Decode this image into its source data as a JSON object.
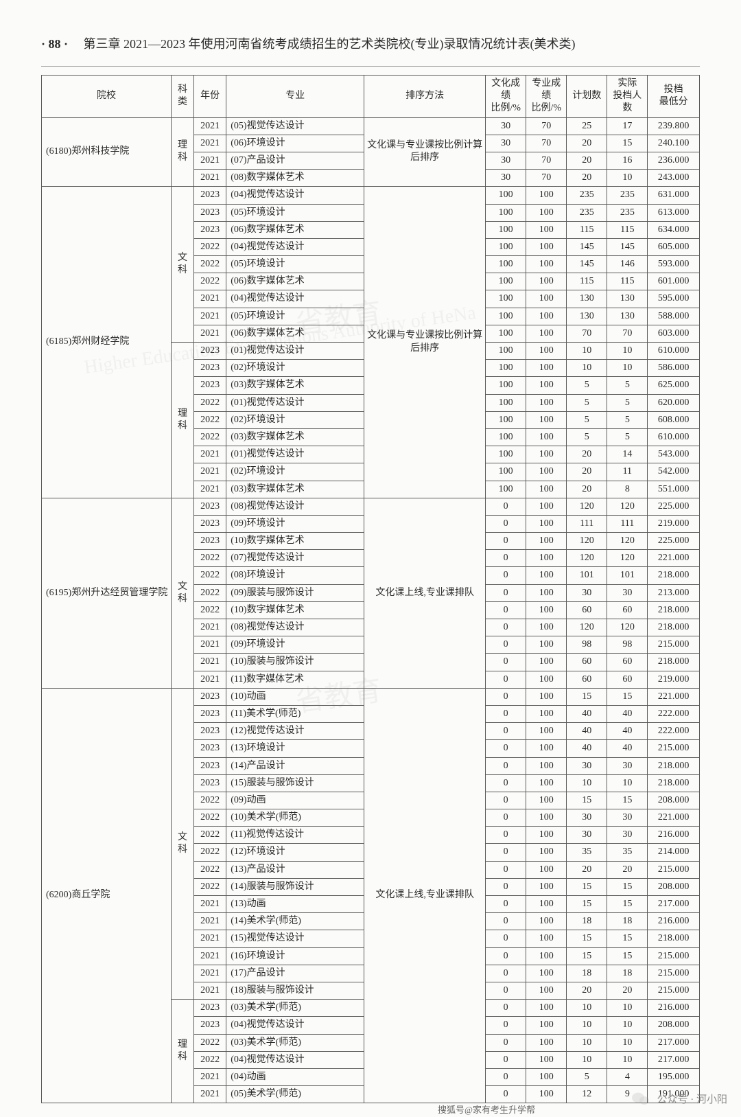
{
  "page": {
    "number": "· 88 ·",
    "chapter": "第三章  2021—2023 年使用河南省统考成绩招生的艺术类院校(专业)录取情况统计表(美术类)"
  },
  "headers": [
    "院校",
    "科类",
    "年份",
    "专业",
    "排序方法",
    "文化成绩比例/%",
    "专业成绩比例/%",
    "计划数",
    "实际投档人数",
    "投档最低分"
  ],
  "footer": {
    "wechat": "公众号 · 河小阳",
    "source": "搜狐号@家有考生升学帮"
  },
  "watermarks": [
    "Higher Education Examinations Authority of HeNa",
    "省教育",
    "省教育"
  ],
  "colwidths": [
    "160",
    "28",
    "40",
    "170",
    "150",
    "50",
    "50",
    "50",
    "50",
    "64"
  ],
  "schools": [
    {
      "name": "(6180)郑州科技学院",
      "tracks": [
        {
          "track": "理科",
          "method": "文化课与专业课按比例计算后排序",
          "rows": [
            {
              "year": "2021",
              "major": "(05)视觉传达设计",
              "wh": "30",
              "zy": "70",
              "plan": "25",
              "act": "17",
              "score": "239.800"
            },
            {
              "year": "2021",
              "major": "(06)环境设计",
              "wh": "30",
              "zy": "70",
              "plan": "20",
              "act": "15",
              "score": "240.100"
            },
            {
              "year": "2021",
              "major": "(07)产品设计",
              "wh": "30",
              "zy": "70",
              "plan": "20",
              "act": "16",
              "score": "236.000"
            },
            {
              "year": "2021",
              "major": "(08)数字媒体艺术",
              "wh": "30",
              "zy": "70",
              "plan": "20",
              "act": "10",
              "score": "243.000"
            }
          ]
        }
      ]
    },
    {
      "name": "(6185)郑州财经学院",
      "tracks": [
        {
          "track": "文科",
          "method": "文化课与专业课按比例计算后排序",
          "rows": [
            {
              "year": "2023",
              "major": "(04)视觉传达设计",
              "wh": "100",
              "zy": "100",
              "plan": "235",
              "act": "235",
              "score": "631.000"
            },
            {
              "year": "2023",
              "major": "(05)环境设计",
              "wh": "100",
              "zy": "100",
              "plan": "235",
              "act": "235",
              "score": "613.000"
            },
            {
              "year": "2023",
              "major": "(06)数字媒体艺术",
              "wh": "100",
              "zy": "100",
              "plan": "115",
              "act": "115",
              "score": "634.000"
            },
            {
              "year": "2022",
              "major": "(04)视觉传达设计",
              "wh": "100",
              "zy": "100",
              "plan": "145",
              "act": "145",
              "score": "605.000"
            },
            {
              "year": "2022",
              "major": "(05)环境设计",
              "wh": "100",
              "zy": "100",
              "plan": "145",
              "act": "146",
              "score": "593.000"
            },
            {
              "year": "2022",
              "major": "(06)数字媒体艺术",
              "wh": "100",
              "zy": "100",
              "plan": "115",
              "act": "115",
              "score": "601.000"
            },
            {
              "year": "2021",
              "major": "(04)视觉传达设计",
              "wh": "100",
              "zy": "100",
              "plan": "130",
              "act": "130",
              "score": "595.000"
            },
            {
              "year": "2021",
              "major": "(05)环境设计",
              "wh": "100",
              "zy": "100",
              "plan": "130",
              "act": "130",
              "score": "588.000"
            },
            {
              "year": "2021",
              "major": "(06)数字媒体艺术",
              "wh": "100",
              "zy": "100",
              "plan": "70",
              "act": "70",
              "score": "603.000"
            }
          ]
        },
        {
          "track": "理科",
          "method": null,
          "rows": [
            {
              "year": "2023",
              "major": "(01)视觉传达设计",
              "wh": "100",
              "zy": "100",
              "plan": "10",
              "act": "10",
              "score": "610.000"
            },
            {
              "year": "2023",
              "major": "(02)环境设计",
              "wh": "100",
              "zy": "100",
              "plan": "10",
              "act": "10",
              "score": "586.000"
            },
            {
              "year": "2023",
              "major": "(03)数字媒体艺术",
              "wh": "100",
              "zy": "100",
              "plan": "5",
              "act": "5",
              "score": "625.000"
            },
            {
              "year": "2022",
              "major": "(01)视觉传达设计",
              "wh": "100",
              "zy": "100",
              "plan": "5",
              "act": "5",
              "score": "620.000"
            },
            {
              "year": "2022",
              "major": "(02)环境设计",
              "wh": "100",
              "zy": "100",
              "plan": "5",
              "act": "5",
              "score": "608.000"
            },
            {
              "year": "2022",
              "major": "(03)数字媒体艺术",
              "wh": "100",
              "zy": "100",
              "plan": "5",
              "act": "5",
              "score": "610.000"
            },
            {
              "year": "2021",
              "major": "(01)视觉传达设计",
              "wh": "100",
              "zy": "100",
              "plan": "20",
              "act": "14",
              "score": "543.000"
            },
            {
              "year": "2021",
              "major": "(02)环境设计",
              "wh": "100",
              "zy": "100",
              "plan": "20",
              "act": "11",
              "score": "542.000"
            },
            {
              "year": "2021",
              "major": "(03)数字媒体艺术",
              "wh": "100",
              "zy": "100",
              "plan": "20",
              "act": "8",
              "score": "551.000"
            }
          ]
        }
      ]
    },
    {
      "name": "(6195)郑州升达经贸管理学院",
      "tracks": [
        {
          "track": "文科",
          "method": "文化课上线,专业课排队",
          "rows": [
            {
              "year": "2023",
              "major": "(08)视觉传达设计",
              "wh": "0",
              "zy": "100",
              "plan": "120",
              "act": "120",
              "score": "225.000"
            },
            {
              "year": "2023",
              "major": "(09)环境设计",
              "wh": "0",
              "zy": "100",
              "plan": "111",
              "act": "111",
              "score": "219.000"
            },
            {
              "year": "2023",
              "major": "(10)数字媒体艺术",
              "wh": "0",
              "zy": "100",
              "plan": "120",
              "act": "120",
              "score": "225.000"
            },
            {
              "year": "2022",
              "major": "(07)视觉传达设计",
              "wh": "0",
              "zy": "100",
              "plan": "120",
              "act": "120",
              "score": "221.000"
            },
            {
              "year": "2022",
              "major": "(08)环境设计",
              "wh": "0",
              "zy": "100",
              "plan": "101",
              "act": "101",
              "score": "218.000"
            },
            {
              "year": "2022",
              "major": "(09)服装与服饰设计",
              "wh": "0",
              "zy": "100",
              "plan": "30",
              "act": "30",
              "score": "213.000"
            },
            {
              "year": "2022",
              "major": "(10)数字媒体艺术",
              "wh": "0",
              "zy": "100",
              "plan": "60",
              "act": "60",
              "score": "218.000"
            },
            {
              "year": "2021",
              "major": "(08)视觉传达设计",
              "wh": "0",
              "zy": "100",
              "plan": "120",
              "act": "120",
              "score": "218.000"
            },
            {
              "year": "2021",
              "major": "(09)环境设计",
              "wh": "0",
              "zy": "100",
              "plan": "98",
              "act": "98",
              "score": "215.000"
            },
            {
              "year": "2021",
              "major": "(10)服装与服饰设计",
              "wh": "0",
              "zy": "100",
              "plan": "60",
              "act": "60",
              "score": "218.000"
            },
            {
              "year": "2021",
              "major": "(11)数字媒体艺术",
              "wh": "0",
              "zy": "100",
              "plan": "60",
              "act": "60",
              "score": "219.000"
            }
          ]
        }
      ]
    },
    {
      "name": "(6200)商丘学院",
      "tracks": [
        {
          "track": "文科",
          "method": "文化课上线,专业课排队",
          "rows": [
            {
              "year": "2023",
              "major": "(10)动画",
              "wh": "0",
              "zy": "100",
              "plan": "15",
              "act": "15",
              "score": "221.000"
            },
            {
              "year": "2023",
              "major": "(11)美术学(师范)",
              "wh": "0",
              "zy": "100",
              "plan": "40",
              "act": "40",
              "score": "222.000"
            },
            {
              "year": "2023",
              "major": "(12)视觉传达设计",
              "wh": "0",
              "zy": "100",
              "plan": "40",
              "act": "40",
              "score": "222.000"
            },
            {
              "year": "2023",
              "major": "(13)环境设计",
              "wh": "0",
              "zy": "100",
              "plan": "40",
              "act": "40",
              "score": "215.000"
            },
            {
              "year": "2023",
              "major": "(14)产品设计",
              "wh": "0",
              "zy": "100",
              "plan": "30",
              "act": "30",
              "score": "218.000"
            },
            {
              "year": "2023",
              "major": "(15)服装与服饰设计",
              "wh": "0",
              "zy": "100",
              "plan": "10",
              "act": "10",
              "score": "218.000"
            },
            {
              "year": "2022",
              "major": "(09)动画",
              "wh": "0",
              "zy": "100",
              "plan": "15",
              "act": "15",
              "score": "208.000"
            },
            {
              "year": "2022",
              "major": "(10)美术学(师范)",
              "wh": "0",
              "zy": "100",
              "plan": "30",
              "act": "30",
              "score": "221.000"
            },
            {
              "year": "2022",
              "major": "(11)视觉传达设计",
              "wh": "0",
              "zy": "100",
              "plan": "30",
              "act": "30",
              "score": "216.000"
            },
            {
              "year": "2022",
              "major": "(12)环境设计",
              "wh": "0",
              "zy": "100",
              "plan": "35",
              "act": "35",
              "score": "214.000"
            },
            {
              "year": "2022",
              "major": "(13)产品设计",
              "wh": "0",
              "zy": "100",
              "plan": "20",
              "act": "20",
              "score": "215.000"
            },
            {
              "year": "2022",
              "major": "(14)服装与服饰设计",
              "wh": "0",
              "zy": "100",
              "plan": "15",
              "act": "15",
              "score": "208.000"
            },
            {
              "year": "2021",
              "major": "(13)动画",
              "wh": "0",
              "zy": "100",
              "plan": "15",
              "act": "15",
              "score": "217.000"
            },
            {
              "year": "2021",
              "major": "(14)美术学(师范)",
              "wh": "0",
              "zy": "100",
              "plan": "18",
              "act": "18",
              "score": "216.000"
            },
            {
              "year": "2021",
              "major": "(15)视觉传达设计",
              "wh": "0",
              "zy": "100",
              "plan": "15",
              "act": "15",
              "score": "218.000"
            },
            {
              "year": "2021",
              "major": "(16)环境设计",
              "wh": "0",
              "zy": "100",
              "plan": "15",
              "act": "15",
              "score": "215.000"
            },
            {
              "year": "2021",
              "major": "(17)产品设计",
              "wh": "0",
              "zy": "100",
              "plan": "18",
              "act": "18",
              "score": "215.000"
            },
            {
              "year": "2021",
              "major": "(18)服装与服饰设计",
              "wh": "0",
              "zy": "100",
              "plan": "20",
              "act": "20",
              "score": "215.000"
            }
          ]
        },
        {
          "track": "理科",
          "method": null,
          "rows": [
            {
              "year": "2023",
              "major": "(03)美术学(师范)",
              "wh": "0",
              "zy": "100",
              "plan": "10",
              "act": "10",
              "score": "216.000"
            },
            {
              "year": "2023",
              "major": "(04)视觉传达设计",
              "wh": "0",
              "zy": "100",
              "plan": "10",
              "act": "10",
              "score": "208.000"
            },
            {
              "year": "2022",
              "major": "(03)美术学(师范)",
              "wh": "0",
              "zy": "100",
              "plan": "10",
              "act": "10",
              "score": "217.000"
            },
            {
              "year": "2022",
              "major": "(04)视觉传达设计",
              "wh": "0",
              "zy": "100",
              "plan": "10",
              "act": "10",
              "score": "217.000"
            },
            {
              "year": "2021",
              "major": "(04)动画",
              "wh": "0",
              "zy": "100",
              "plan": "5",
              "act": "4",
              "score": "195.000"
            },
            {
              "year": "2021",
              "major": "(05)美术学(师范)",
              "wh": "0",
              "zy": "100",
              "plan": "12",
              "act": "9",
              "score": "191.000"
            }
          ]
        }
      ]
    }
  ]
}
